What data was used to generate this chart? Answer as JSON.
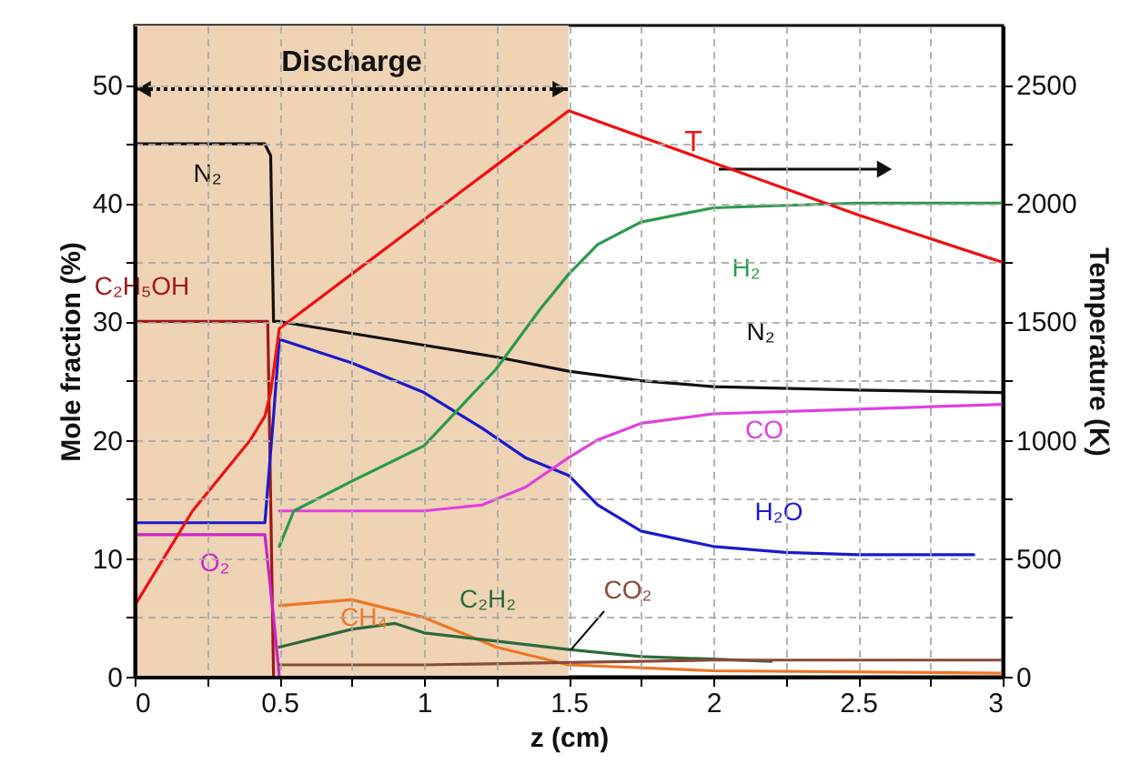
{
  "chart_data": {
    "type": "line",
    "xlabel": "z (cm)",
    "ylabel": "Mole fraction (%)",
    "y2label": "Temperature (K)",
    "xlim": [
      0,
      3
    ],
    "ylim": [
      0,
      55
    ],
    "y2lim": [
      0,
      2750
    ],
    "xticks": [
      0,
      {
        "value": 0.25,
        "label": null
      },
      0.5,
      {
        "value": 0.75,
        "label": null
      },
      1,
      {
        "value": 1.25,
        "label": null
      },
      1.5,
      {
        "value": 1.75,
        "label": null
      },
      2,
      {
        "value": 2.25,
        "label": null
      },
      2.5,
      {
        "value": 2.75,
        "label": null
      },
      3
    ],
    "yticks": [
      0,
      {
        "value": 5,
        "label": null
      },
      10,
      {
        "value": 15,
        "label": null
      },
      20,
      {
        "value": 25,
        "label": null
      },
      30,
      {
        "value": 35,
        "label": null
      },
      40,
      {
        "value": 45,
        "label": null
      },
      50
    ],
    "y2ticks": [
      0,
      {
        "value": 250,
        "label": null
      },
      500,
      {
        "value": 750,
        "label": null
      },
      1000,
      {
        "value": 1250,
        "label": null
      },
      1500,
      {
        "value": 1750,
        "label": null
      },
      2000,
      {
        "value": 2250,
        "label": null
      },
      2500
    ],
    "grid": true,
    "marker": "none",
    "bands": [
      {
        "axis": "x",
        "from": 0,
        "to": 1.5,
        "label": "Discharge",
        "color": "#efd3b5"
      }
    ],
    "series": [
      {
        "name": "N₂",
        "color": "#111111",
        "x": [
          0,
          0.45,
          0.47,
          0.48,
          0.5,
          0.75,
          1,
          1.25,
          1.5,
          1.75,
          2,
          2.5,
          3
        ],
        "values": [
          45,
          45,
          44,
          30,
          30,
          29,
          28,
          27,
          25.8,
          25,
          24.5,
          24.2,
          24
        ]
      },
      {
        "name": "C₂H₅OH",
        "color": "#a01818",
        "x": [
          0,
          0.46,
          0.48
        ],
        "values": [
          30,
          30,
          0
        ]
      },
      {
        "name": "O₂",
        "color": "#cc22cc",
        "x": [
          0,
          0.45,
          0.48,
          0.5
        ],
        "values": [
          12,
          12,
          5,
          0
        ]
      },
      {
        "name": "H₂O",
        "color": "#1a1acc",
        "x": [
          0,
          0.45,
          0.48,
          0.5,
          0.75,
          1,
          1.2,
          1.35,
          1.5,
          1.6,
          1.75,
          2,
          2.25,
          2.5,
          2.9
        ],
        "values": [
          13,
          13,
          22,
          28.5,
          26.5,
          24,
          21,
          18.5,
          17,
          14.5,
          12.3,
          11,
          10.5,
          10.3,
          10.3
        ]
      },
      {
        "name": "CO",
        "color": "#e040e0",
        "x": [
          0.5,
          0.75,
          1,
          1.2,
          1.35,
          1.5,
          1.6,
          1.75,
          2,
          2.5,
          3
        ],
        "values": [
          14,
          14,
          14,
          14.5,
          16,
          18.5,
          20,
          21.4,
          22.2,
          22.6,
          23
        ]
      },
      {
        "name": "H₂",
        "color": "#2a9a4a",
        "x": [
          0.5,
          0.55,
          0.75,
          1,
          1.25,
          1.4,
          1.5,
          1.6,
          1.75,
          2,
          2.5,
          3
        ],
        "values": [
          11,
          14,
          16.5,
          19.5,
          26,
          31,
          34,
          36.5,
          38.4,
          39.6,
          40,
          40
        ]
      },
      {
        "name": "CH₄",
        "color": "#ee7722",
        "x": [
          0.5,
          0.75,
          1,
          1.25,
          1.5,
          2,
          3
        ],
        "values": [
          6,
          6.5,
          5,
          2.5,
          1,
          0.5,
          0.3
        ]
      },
      {
        "name": "C₂H₂",
        "color": "#2a6a3a",
        "x": [
          0.5,
          0.75,
          0.9,
          1,
          1.25,
          1.5,
          1.75,
          2.2
        ],
        "values": [
          2.5,
          4,
          4.5,
          3.7,
          3,
          2.3,
          1.7,
          1.3
        ]
      },
      {
        "name": "CO₂",
        "color": "#8b4a3a",
        "x": [
          0.5,
          1,
          1.5,
          2,
          2.5,
          3
        ],
        "values": [
          1,
          1,
          1.2,
          1.4,
          1.4,
          1.4
        ]
      },
      {
        "name": "T",
        "color": "#ee1111",
        "axis": "y2",
        "x": [
          0,
          0.1,
          0.2,
          0.3,
          0.4,
          0.45,
          0.47,
          0.5,
          0.75,
          1,
          1.25,
          1.5,
          2,
          2.5,
          3
        ],
        "values": [
          300,
          500,
          700,
          850,
          1000,
          1100,
          1200,
          1470,
          1700,
          1930,
          2160,
          2390,
          2170,
          1950,
          1750
        ]
      }
    ]
  }
}
